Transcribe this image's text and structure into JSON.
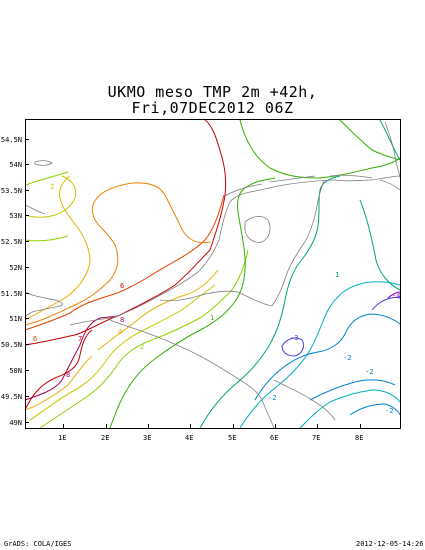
{
  "title": {
    "line1": "UKMO meso TMP 2m +42h,",
    "line2": "Fri,07DEC2012 06Z"
  },
  "map": {
    "lon_range": [
      0,
      9
    ],
    "lat_range": [
      48.75,
      54.75
    ],
    "x_ticks": [
      "1E",
      "2E",
      "3E",
      "4E",
      "5E",
      "6E",
      "7E",
      "8E"
    ],
    "y_ticks": [
      "49N",
      "49.5N",
      "50N",
      "50.5N",
      "51N",
      "51.5N",
      "52N",
      "52.5N",
      "53N",
      "53.5N",
      "54N",
      "54.5N"
    ],
    "contour_labels": [
      "8",
      "7",
      "6",
      "5",
      "4",
      "3",
      "2",
      "1",
      "0",
      "-1",
      "-2",
      "-3",
      "-4"
    ],
    "colors": {
      "c8": "#a0005a",
      "c7": "#c80000",
      "c6": "#e04000",
      "c5": "#f08000",
      "c4": "#e8b000",
      "c3": "#c8c800",
      "c2": "#90d000",
      "c1": "#30b000",
      "c0": "#00a080",
      "cm1": "#00b0c0",
      "cm2": "#0080d0",
      "cm3": "#4040e0",
      "cm4": "#8000c0",
      "coast": "#808080",
      "border": "#808080"
    }
  },
  "footer": {
    "left": "GrADS: COLA/IGES",
    "right": "2012-12-05-14:26"
  }
}
